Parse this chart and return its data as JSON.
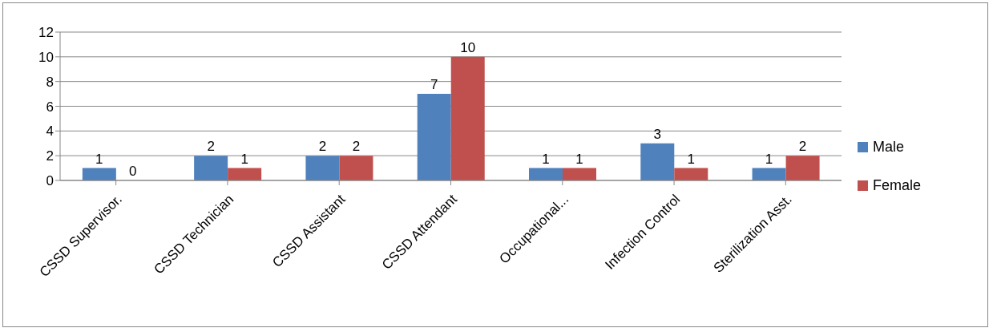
{
  "chart_data": {
    "type": "bar",
    "categories": [
      "CSSD Supervisor.",
      "CSSD Technician",
      "CSSD Assistant",
      "CSSD Attendant",
      "Occupational...",
      "Infection Control",
      "Sterilization Asst."
    ],
    "series": [
      {
        "name": "Male",
        "color": "#4f81bd",
        "values": [
          1,
          2,
          2,
          7,
          1,
          3,
          1
        ]
      },
      {
        "name": "Female",
        "color": "#c0504d",
        "values": [
          0,
          1,
          2,
          10,
          1,
          1,
          2
        ]
      }
    ],
    "ylim": [
      0,
      12
    ],
    "yticks": [
      0,
      2,
      4,
      6,
      8,
      10,
      12
    ],
    "grid": "y",
    "legend": "right",
    "data_labels": true
  }
}
